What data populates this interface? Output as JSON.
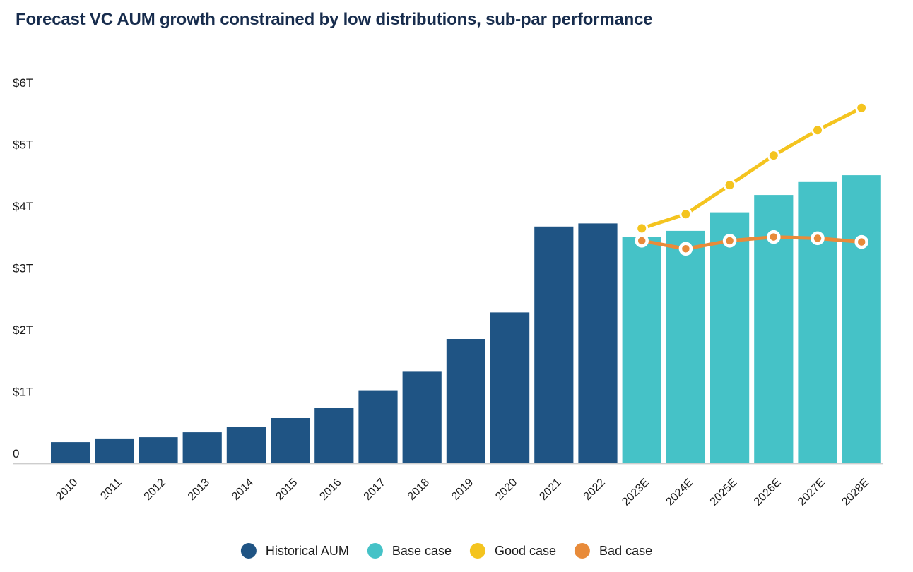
{
  "title": "Forecast VC AUM growth constrained by low distributions, sub-par performance",
  "colors": {
    "title_text": "#172c4d",
    "axis_text": "#1a1a1a",
    "axis_line": "#cdcdcd",
    "background": "#ffffff",
    "historical_aum": "#1f5484",
    "base_case": "#45c2c7",
    "good_case": "#f4c41f",
    "bad_case": "#e88b3a"
  },
  "chart_data": {
    "type": "bar",
    "subtype": "combo bar + line forecast chart",
    "title": "Forecast VC AUM growth constrained by low distributions, sub-par performance",
    "unit": "trillions USD (VC AUM)",
    "xlabel": "",
    "ylabel": "",
    "ylim": [
      0,
      6
    ],
    "grid": false,
    "legend_position": "bottom-center",
    "y_ticks": [
      "0",
      "$1T",
      "$2T",
      "$3T",
      "$4T",
      "$5T",
      "$6T"
    ],
    "categories": [
      "2010",
      "2011",
      "2012",
      "2013",
      "2014",
      "2015",
      "2016",
      "2017",
      "2018",
      "2019",
      "2020",
      "2021",
      "2022",
      "2023E",
      "2024E",
      "2025E",
      "2026E",
      "2027E",
      "2028E"
    ],
    "series": [
      {
        "name": "Historical AUM",
        "type": "bar",
        "color": "#1f5484",
        "values": [
          0.33,
          0.39,
          0.41,
          0.49,
          0.58,
          0.72,
          0.88,
          1.17,
          1.47,
          2.0,
          2.43,
          3.82,
          3.87,
          null,
          null,
          null,
          null,
          null,
          null
        ]
      },
      {
        "name": "Base case",
        "type": "bar",
        "color": "#45c2c7",
        "values": [
          null,
          null,
          null,
          null,
          null,
          null,
          null,
          null,
          null,
          null,
          null,
          null,
          null,
          3.65,
          3.75,
          4.05,
          4.33,
          4.54,
          4.65
        ]
      },
      {
        "name": "Good case",
        "type": "line",
        "color": "#f4c41f",
        "marker": "dot-thin-white-ring",
        "values": [
          null,
          null,
          null,
          null,
          null,
          null,
          null,
          null,
          null,
          null,
          null,
          null,
          null,
          3.79,
          4.02,
          4.49,
          4.97,
          5.38,
          5.74
        ]
      },
      {
        "name": "Bad case",
        "type": "line",
        "color": "#e88b3a",
        "marker": "dot-thick-white-ring",
        "values": [
          null,
          null,
          null,
          null,
          null,
          null,
          null,
          null,
          null,
          null,
          null,
          null,
          null,
          3.59,
          3.46,
          3.59,
          3.65,
          3.63,
          3.57
        ]
      }
    ]
  },
  "legend": {
    "items": [
      {
        "label": "Historical AUM",
        "color": "#1f5484"
      },
      {
        "label": "Base case",
        "color": "#45c2c7"
      },
      {
        "label": "Good case",
        "color": "#f4c41f"
      },
      {
        "label": "Bad case",
        "color": "#e88b3a"
      }
    ]
  }
}
